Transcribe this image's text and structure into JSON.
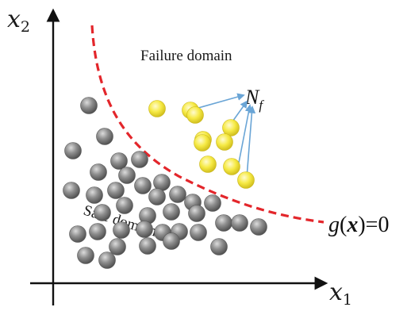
{
  "axes": {
    "x_symbol": "x",
    "x_subscript": "1",
    "y_symbol": "x",
    "y_subscript": "2"
  },
  "regions": {
    "failure_label": "Failure domain",
    "safe_label": "Safe domain"
  },
  "limit_state": {
    "func": "g",
    "open_paren": "(",
    "var": "x",
    "rest": ")=0"
  },
  "failure_count": {
    "symbol": "N",
    "subscript": "f"
  },
  "colors": {
    "boundary": "#e3262b",
    "arrow": "#6aa5d6",
    "axis": "#111111",
    "safe_sample": "#7d7d7d",
    "failure_sample": "#f2e43a"
  },
  "icons": {
    "safe_sample": "gray-sphere-icon",
    "failure_sample": "yellow-sphere-icon"
  },
  "samples": {
    "safe_count": 37,
    "failure_count": 10
  }
}
